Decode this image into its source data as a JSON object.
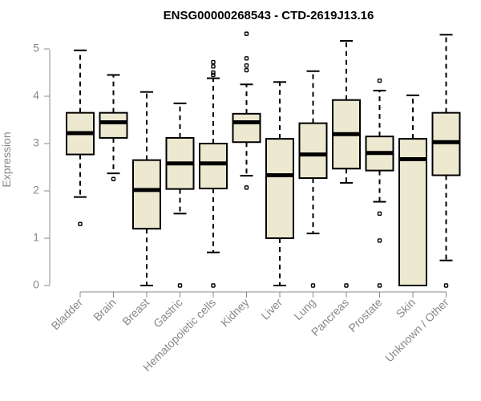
{
  "chart_data": {
    "type": "boxplot",
    "title": "ENSG00000268543 - CTD-2619J13.16",
    "xlabel": "",
    "ylabel": "Expression",
    "ylim": [
      0,
      5.3
    ],
    "yticks": [
      0,
      1,
      2,
      3,
      4,
      5
    ],
    "grid": false,
    "box_color": "#ede8d0",
    "categories": [
      "Bladder",
      "Brain",
      "Breast",
      "Gastric",
      "Hematopoietic cells",
      "Kidney",
      "Liver",
      "Lung",
      "Pancreas",
      "Prostate",
      "Skin",
      "Unknown / Other"
    ],
    "boxes": [
      {
        "whisker_low": 1.87,
        "q1": 2.77,
        "median": 3.22,
        "q3": 3.65,
        "whisker_high": 4.97,
        "outliers": [
          1.3
        ]
      },
      {
        "whisker_low": 2.37,
        "q1": 3.12,
        "median": 3.45,
        "q3": 3.65,
        "whisker_high": 4.45,
        "outliers": [
          2.25
        ]
      },
      {
        "whisker_low": 0.0,
        "q1": 1.2,
        "median": 2.02,
        "q3": 2.65,
        "whisker_high": 4.09,
        "outliers": []
      },
      {
        "whisker_low": 1.52,
        "q1": 2.04,
        "median": 2.58,
        "q3": 3.12,
        "whisker_high": 3.85,
        "outliers": [
          0.0
        ]
      },
      {
        "whisker_low": 0.7,
        "q1": 2.05,
        "median": 2.58,
        "q3": 3.0,
        "whisker_high": 4.38,
        "outliers": [
          0.0,
          4.45,
          4.5,
          4.63,
          4.72
        ]
      },
      {
        "whisker_low": 2.32,
        "q1": 3.03,
        "median": 3.45,
        "q3": 3.63,
        "whisker_high": 4.25,
        "outliers": [
          2.07,
          4.55,
          4.65,
          4.8,
          5.32
        ]
      },
      {
        "whisker_low": 0.0,
        "q1": 1.0,
        "median": 2.33,
        "q3": 3.1,
        "whisker_high": 4.3,
        "outliers": []
      },
      {
        "whisker_low": 1.1,
        "q1": 2.27,
        "median": 2.77,
        "q3": 3.43,
        "whisker_high": 4.53,
        "outliers": [
          0.0
        ]
      },
      {
        "whisker_low": 2.17,
        "q1": 2.47,
        "median": 3.2,
        "q3": 3.92,
        "whisker_high": 5.17,
        "outliers": [
          0.0
        ]
      },
      {
        "whisker_low": 1.77,
        "q1": 2.43,
        "median": 2.8,
        "q3": 3.15,
        "whisker_high": 4.12,
        "outliers": [
          0.0,
          0.95,
          1.52,
          4.33
        ]
      },
      {
        "whisker_low": 0.0,
        "q1": 0.0,
        "median": 2.67,
        "q3": 3.1,
        "whisker_high": 4.02,
        "outliers": []
      },
      {
        "whisker_low": 0.53,
        "q1": 2.33,
        "median": 3.03,
        "q3": 3.65,
        "whisker_high": 5.3,
        "outliers": [
          0.0
        ]
      }
    ]
  }
}
